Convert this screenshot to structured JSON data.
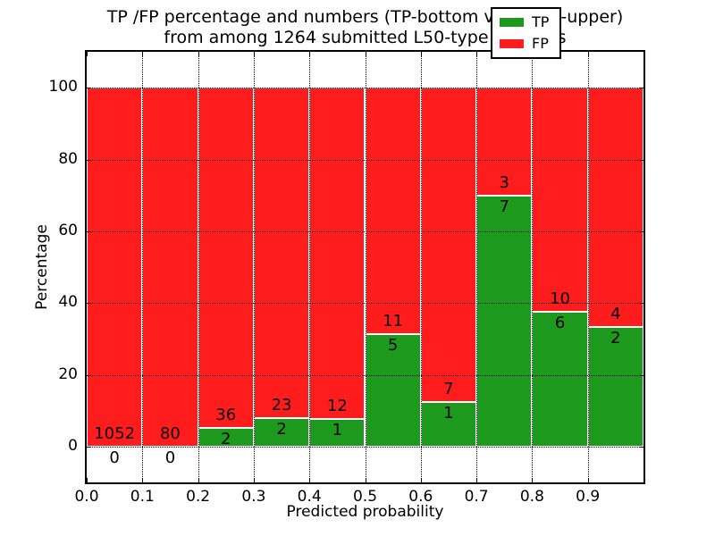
{
  "figure": {
    "title_line1": "TP /FP percentage and numbers (TP-bottom value, FP-upper)",
    "title_line2": "from among 1264 submitted L50-type contacts"
  },
  "chart_data": {
    "type": "bar",
    "stacked": true,
    "normalized_to_percent": 100,
    "title": "TP /FP percentage and numbers (TP-bottom value, FP-upper) from among 1264 submitted L50-type contacts",
    "total_contacts": 1264,
    "xlabel": "Predicted probability",
    "ylabel": "Percentage",
    "xlim": [
      0.0,
      1.0
    ],
    "ylim": [
      -10,
      110
    ],
    "bin_width": 0.1,
    "bin_starts": [
      0.0,
      0.1,
      0.2,
      0.3,
      0.4,
      0.5,
      0.6,
      0.7,
      0.8,
      0.9
    ],
    "xticks": [
      "0.0",
      "0.1",
      "0.2",
      "0.3",
      "0.4",
      "0.5",
      "0.6",
      "0.7",
      "0.8",
      "0.9"
    ],
    "yticks": [
      0,
      20,
      40,
      60,
      80,
      100
    ],
    "grid": {
      "visible": true,
      "style": "dotted",
      "color": "#000000"
    },
    "series": [
      {
        "name": "TP",
        "color": "#1d9a1d",
        "counts": [
          0,
          0,
          2,
          2,
          1,
          5,
          1,
          7,
          6,
          2
        ]
      },
      {
        "name": "FP",
        "color": "#ff1c1c",
        "counts": [
          1052,
          80,
          36,
          23,
          12,
          11,
          7,
          3,
          10,
          4
        ]
      }
    ],
    "tp_percent_heights": [
      0,
      0,
      5.26,
      8.0,
      7.69,
      31.25,
      12.5,
      70.0,
      37.5,
      33.33
    ],
    "legend": {
      "position": "upper right",
      "entries": [
        {
          "label": "TP",
          "color": "#1d9a1d"
        },
        {
          "label": "FP",
          "color": "#ff1c1c"
        }
      ]
    }
  },
  "colors": {
    "tp_green": "#1d9a1d",
    "fp_red": "#ff1c1c",
    "text": "#000000",
    "background": "#ffffff"
  }
}
